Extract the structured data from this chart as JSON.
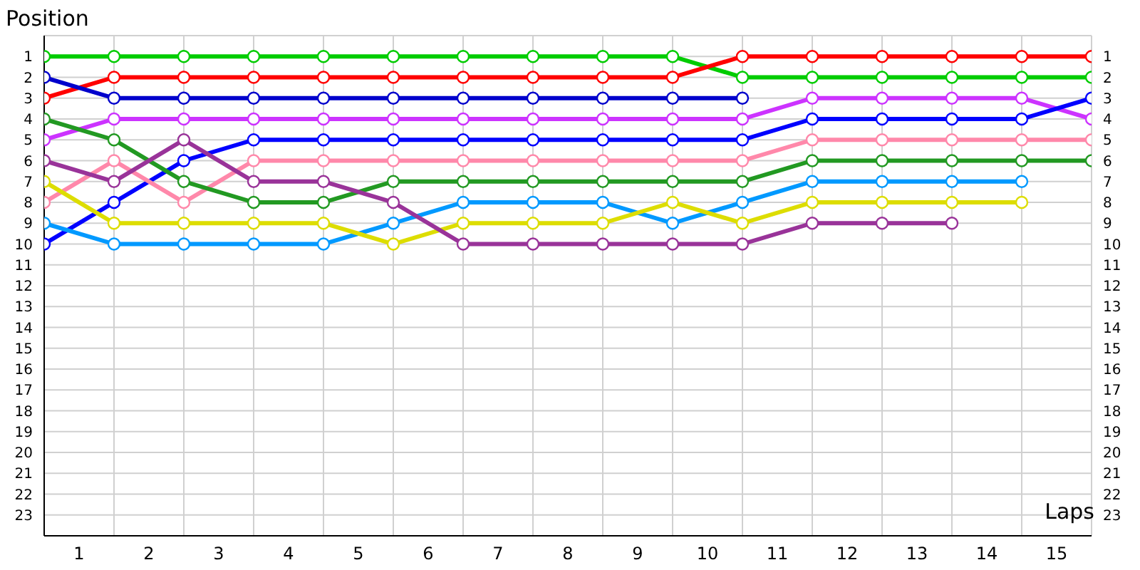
{
  "chart_data": {
    "type": "line",
    "xlabel": "Laps",
    "ylabel": "Position",
    "x": [
      0,
      1,
      2,
      3,
      4,
      5,
      6,
      7,
      8,
      9,
      10,
      11,
      12,
      13,
      14,
      15
    ],
    "xlim": [
      0,
      15
    ],
    "xticks": [
      {
        "value": 0,
        "label": null
      },
      {
        "value": 0.5,
        "label": "1"
      },
      {
        "value": 1,
        "label": null
      },
      {
        "value": 1.5,
        "label": "2"
      },
      {
        "value": 2,
        "label": null
      },
      {
        "value": 2.5,
        "label": "3"
      },
      {
        "value": 3,
        "label": null
      },
      {
        "value": 3.5,
        "label": "4"
      },
      {
        "value": 4,
        "label": null
      },
      {
        "value": 4.5,
        "label": "5"
      },
      {
        "value": 5,
        "label": null
      },
      {
        "value": 5.5,
        "label": "6"
      },
      {
        "value": 6,
        "label": null
      },
      {
        "value": 6.5,
        "label": "7"
      },
      {
        "value": 7,
        "label": null
      },
      {
        "value": 7.5,
        "label": "8"
      },
      {
        "value": 8,
        "label": null
      },
      {
        "value": 8.5,
        "label": "9"
      },
      {
        "value": 9,
        "label": null
      },
      {
        "value": 9.5,
        "label": "10"
      },
      {
        "value": 10,
        "label": null
      },
      {
        "value": 10.5,
        "label": "11"
      },
      {
        "value": 11,
        "label": null
      },
      {
        "value": 11.5,
        "label": "12"
      },
      {
        "value": 12,
        "label": null
      },
      {
        "value": 12.5,
        "label": "13"
      },
      {
        "value": 13,
        "label": null
      },
      {
        "value": 13.5,
        "label": "14"
      },
      {
        "value": 14,
        "label": null
      },
      {
        "value": 14.5,
        "label": "15"
      },
      {
        "value": 15,
        "label": null
      }
    ],
    "ylim": [
      24,
      0
    ],
    "yticks": [
      1,
      2,
      3,
      4,
      5,
      6,
      7,
      8,
      9,
      10,
      11,
      12,
      13,
      14,
      15,
      16,
      17,
      18,
      19,
      20,
      21,
      22,
      23
    ],
    "y2lim": [
      24,
      0
    ],
    "y2ticks": [
      1,
      2,
      3,
      4,
      5,
      6,
      7,
      8,
      9,
      10,
      11,
      12,
      13,
      14,
      15,
      16,
      17,
      18,
      19,
      20,
      21,
      22,
      23
    ],
    "grid": true,
    "marker": "circle",
    "line_style": "solid",
    "series": [
      {
        "color": "#00cc00",
        "values": [
          1,
          1,
          1,
          1,
          1,
          1,
          1,
          1,
          1,
          1,
          2,
          2,
          2,
          2,
          2,
          2
        ]
      },
      {
        "color": "#ff0000",
        "values": [
          3,
          2,
          2,
          2,
          2,
          2,
          2,
          2,
          2,
          2,
          1,
          1,
          1,
          1,
          1,
          1
        ]
      },
      {
        "color": "#0000cc",
        "values": [
          2,
          3,
          3,
          3,
          3,
          3,
          3,
          3,
          3,
          3,
          3,
          null,
          null,
          null,
          null,
          null
        ]
      },
      {
        "color": "#cc33ff",
        "values": [
          5,
          4,
          4,
          4,
          4,
          4,
          4,
          4,
          4,
          4,
          4,
          3,
          3,
          3,
          3,
          4
        ]
      },
      {
        "color": "#0000ff",
        "values": [
          10,
          8,
          6,
          5,
          5,
          5,
          5,
          5,
          5,
          5,
          5,
          4,
          4,
          4,
          4,
          3
        ]
      },
      {
        "color": "#ff88aa",
        "values": [
          8,
          6,
          8,
          6,
          6,
          6,
          6,
          6,
          6,
          6,
          6,
          5,
          5,
          5,
          5,
          5
        ]
      },
      {
        "color": "#229922",
        "values": [
          4,
          5,
          7,
          8,
          8,
          7,
          7,
          7,
          7,
          7,
          7,
          6,
          6,
          6,
          6,
          6
        ]
      },
      {
        "color": "#0099ff",
        "values": [
          9,
          10,
          10,
          10,
          10,
          9,
          8,
          8,
          8,
          9,
          8,
          7,
          7,
          7,
          7,
          null
        ]
      },
      {
        "color": "#dddd00",
        "values": [
          7,
          9,
          9,
          9,
          9,
          10,
          9,
          9,
          9,
          8,
          9,
          8,
          8,
          8,
          8,
          null
        ]
      },
      {
        "color": "#993399",
        "values": [
          6,
          7,
          5,
          7,
          7,
          8,
          10,
          10,
          10,
          10,
          10,
          9,
          9,
          9,
          null,
          null
        ]
      }
    ]
  }
}
